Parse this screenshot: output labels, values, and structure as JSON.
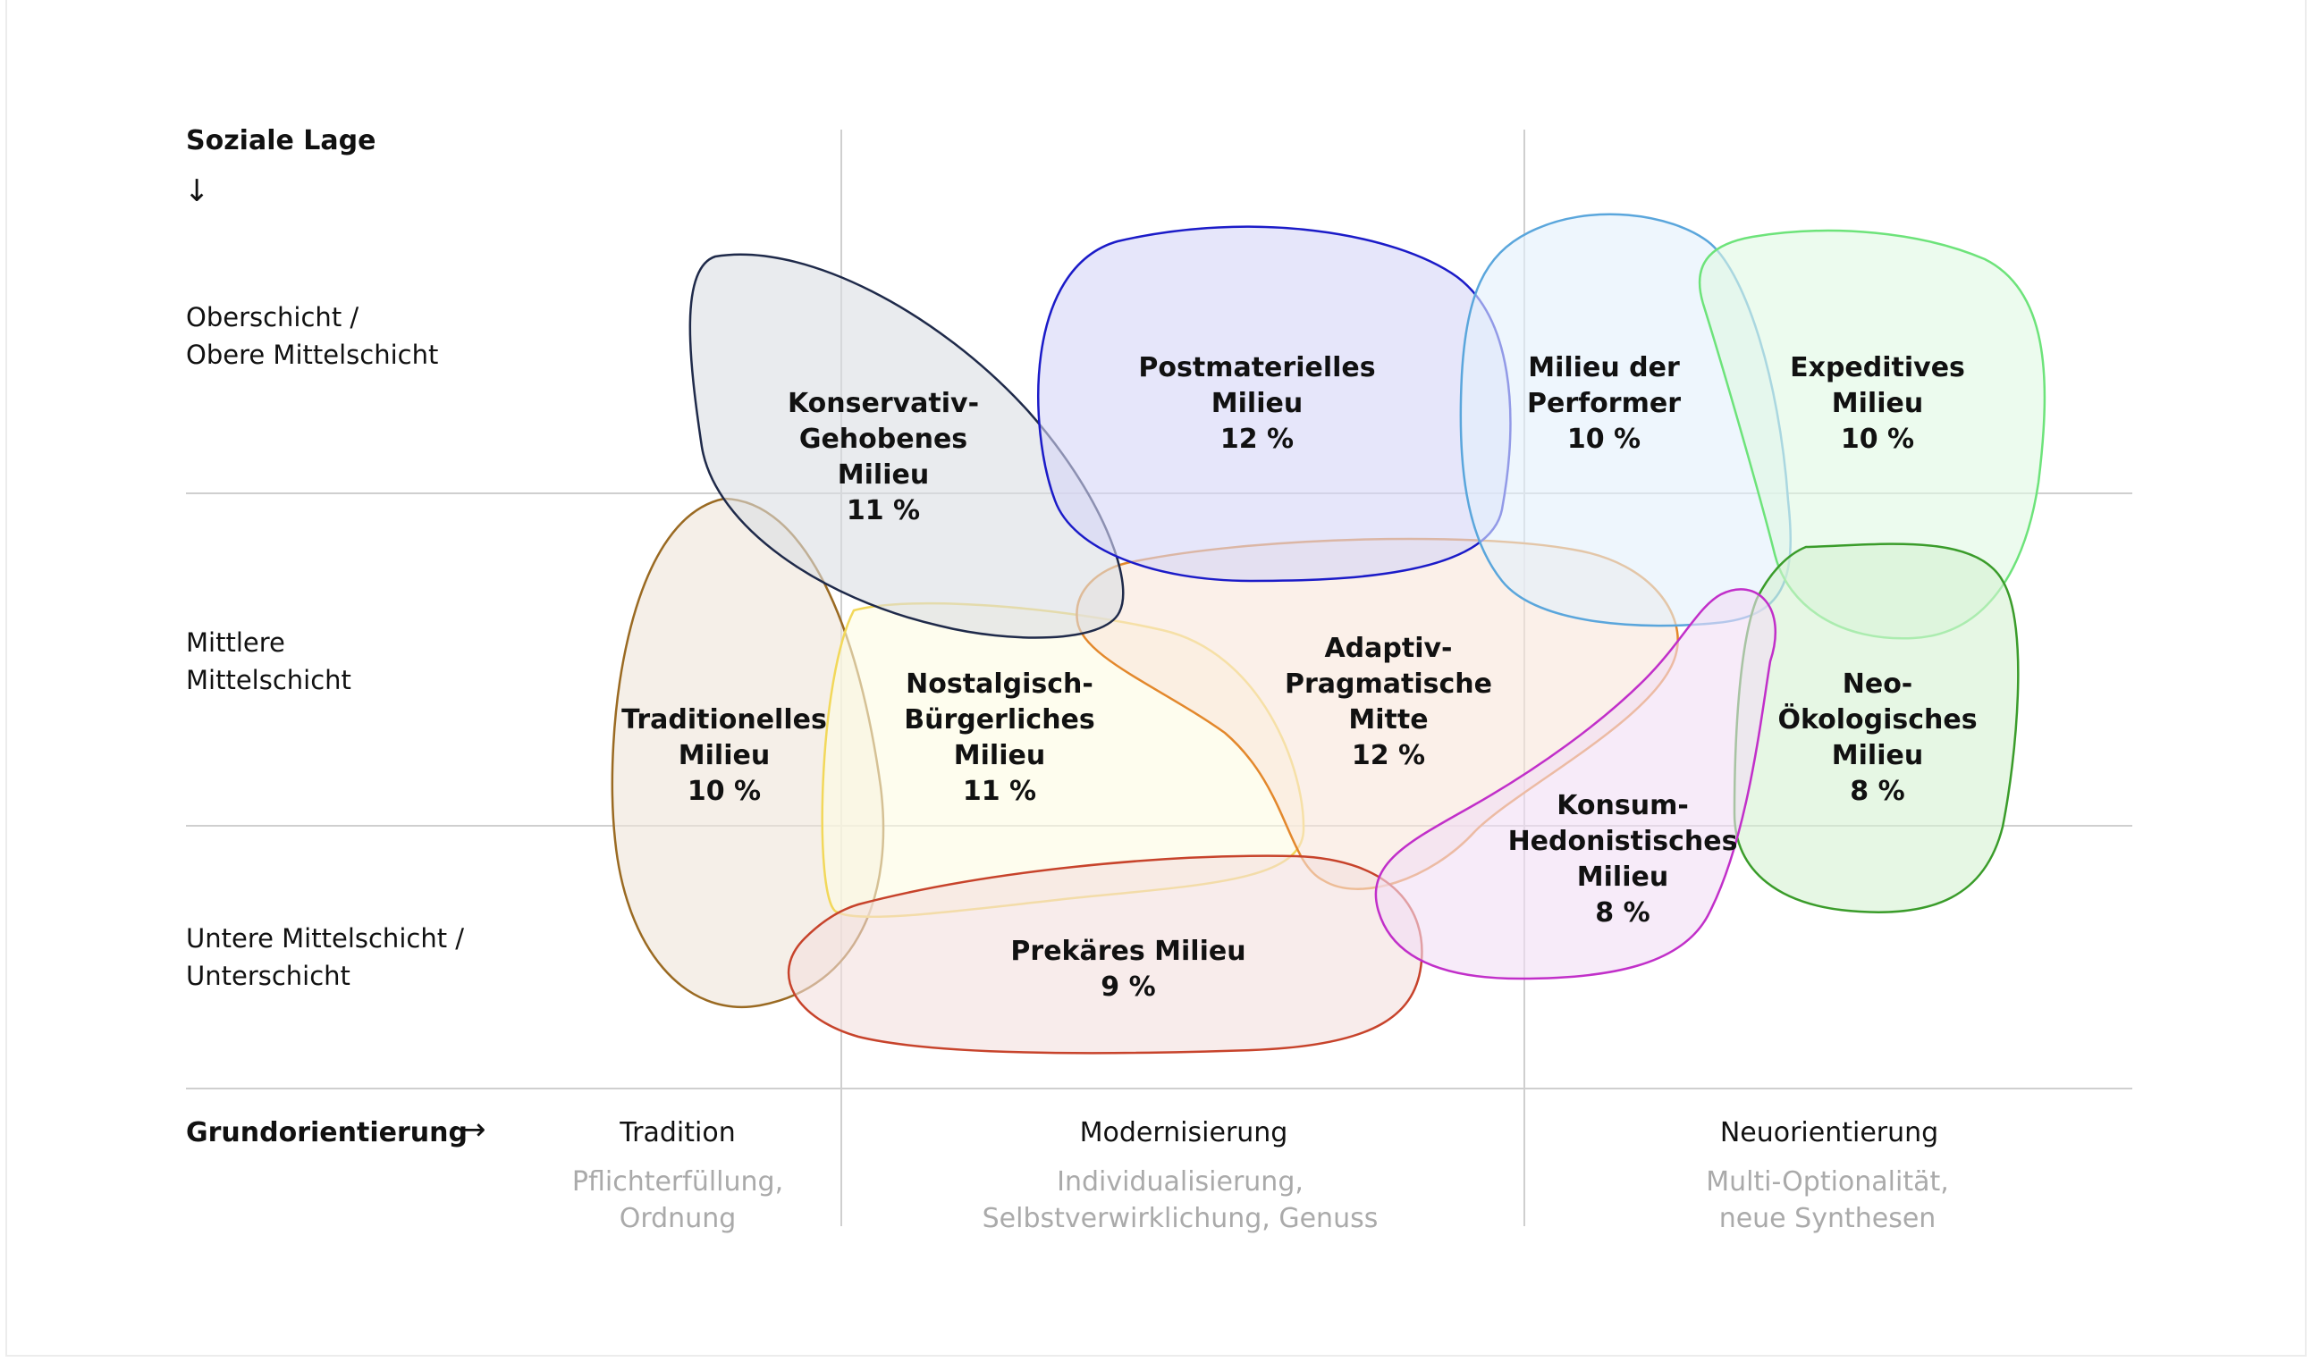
{
  "axes": {
    "y_title": "Soziale Lage",
    "y_arrow": "↓",
    "x_title": "Grundorientierung",
    "x_arrow": "→"
  },
  "rows": [
    {
      "line1": "Oberschicht /",
      "line2": "Obere Mittelschicht"
    },
    {
      "line1": "Mittlere",
      "line2": "Mittelschicht"
    },
    {
      "line1": "Untere Mittelschicht /",
      "line2": "Unterschicht"
    }
  ],
  "columns": [
    {
      "head": "Tradition",
      "sub1": "Pflichterfüllung,",
      "sub2": "Ordnung"
    },
    {
      "head": "Modernisierung",
      "sub1": "Individualisierung,",
      "sub2": "Selbstverwirklichung, Genuss"
    },
    {
      "head": "Neuorientierung",
      "sub1": "Multi-Optionalität,",
      "sub2": "neue Synthesen"
    }
  ],
  "milieus": [
    {
      "id": "konservativ",
      "lines": [
        "Konservativ-",
        "Gehobenes",
        "Milieu",
        "11 %"
      ],
      "share": 11,
      "stroke": "#1f2a4a",
      "fill": "#dadde3"
    },
    {
      "id": "postmateriell",
      "lines": [
        "Postmaterielles",
        "Milieu",
        "12 %"
      ],
      "share": 12,
      "stroke": "#1b1bc8",
      "fill": "#d6d6f7"
    },
    {
      "id": "performer",
      "lines": [
        "Milieu der",
        "Performer",
        "10 %"
      ],
      "share": 10,
      "stroke": "#5aa6dc",
      "fill": "#e3f0fc"
    },
    {
      "id": "expeditiv",
      "lines": [
        "Expeditives",
        "Milieu",
        "10 %"
      ],
      "share": 10,
      "stroke": "#6de37a",
      "fill": "#e0f9e2"
    },
    {
      "id": "traditionell",
      "lines": [
        "Traditionelles",
        "Milieu",
        "10 %"
      ],
      "share": 10,
      "stroke": "#9a6a22",
      "fill": "#eee5d9"
    },
    {
      "id": "nostalgisch",
      "lines": [
        "Nostalgisch-",
        "Bürgerliches",
        "Milieu",
        "11 %"
      ],
      "share": 11,
      "stroke": "#f2d85a",
      "fill": "#fdfbe2"
    },
    {
      "id": "adaptiv",
      "lines": [
        "Adaptiv-",
        "Pragmatische",
        "Mitte",
        "12 %"
      ],
      "share": 12,
      "stroke": "#e3882c",
      "fill": "#f9e6db"
    },
    {
      "id": "konsum",
      "lines": [
        "Konsum-",
        "Hedonistisches",
        "Milieu",
        "8 %"
      ],
      "share": 8,
      "stroke": "#c12fc9",
      "fill": "#f1ddf5"
    },
    {
      "id": "neooeko",
      "lines": [
        "Neo-",
        "Ökologisches",
        "Milieu",
        "8 %"
      ],
      "share": 8,
      "stroke": "#3a9c2a",
      "fill": "#d5f1d2"
    },
    {
      "id": "prekaer",
      "lines": [
        "Prekäres Milieu",
        "9 %"
      ],
      "share": 9,
      "stroke": "#c7432b",
      "fill": "#f3e0de"
    }
  ]
}
